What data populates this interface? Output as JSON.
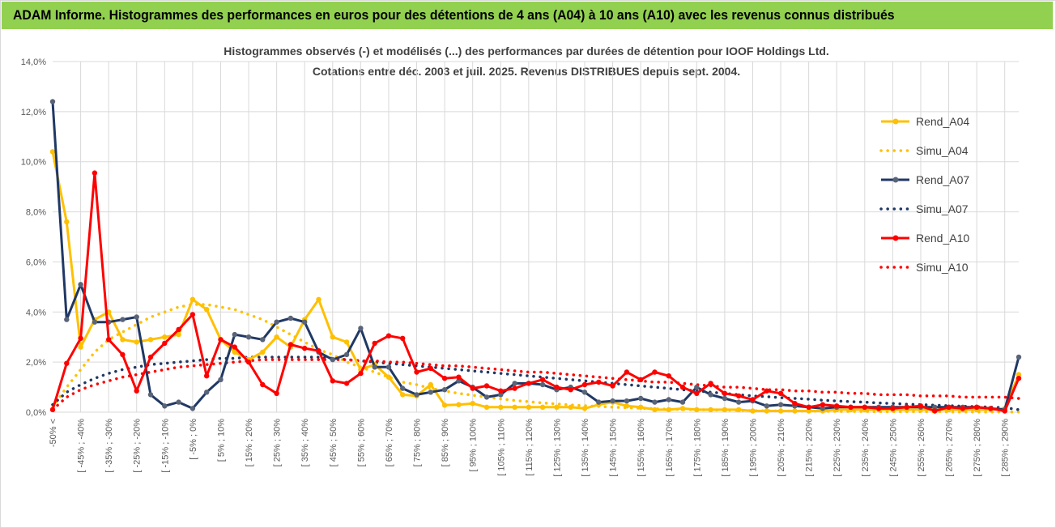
{
  "banner": {
    "title": "ADAM Informe. Histogrammes des performances en euros pour des détentions de 4 ans (A04) à 10 ans (A10) avec les revenus connus distribués"
  },
  "colors": {
    "banner_bg": "#92d050",
    "a04": "#ffc000",
    "a07": "#203864",
    "a10": "#ff0000",
    "grid": "#d9d9d9"
  },
  "chart_data": {
    "type": "line",
    "title_line1": "Histogrammes observés (-) et modélisés (...) des performances par durées de détention pour IOOF Holdings Ltd.",
    "title_line2": "Cotations entre déc. 2003 et juil. 2025. Revenus DISTRIBUES depuis sept. 2004.",
    "ylim": [
      0,
      14
    ],
    "yticks": [
      "0,0%",
      "2,0%",
      "4,0%",
      "6,0%",
      "8,0%",
      "10,0%",
      "12,0%",
      "14,0%"
    ],
    "x_labels_shown": [
      "-50% <",
      "[ -45% ; -40%",
      "[ -35% ; -30%",
      "[ -25% ; -20%",
      "[ -15% ; -10%",
      "[ -5% ; 0%",
      "[ 5% ; 10%",
      "[ 15% ; 20%",
      "[ 25% ; 30%",
      "[ 35% ; 40%",
      "[ 45% ; 50%",
      "[ 55% ; 60%",
      "[ 65% ; 70%",
      "[ 75% ; 80%",
      "[ 85% ; 90%",
      "[ 95% ; 100%",
      "[ 105% ; 110%",
      "[ 115% ; 120%",
      "[ 125% ; 130%",
      "[ 135% ; 140%",
      "[ 145% ; 150%",
      "[ 155% ; 160%",
      "[ 165% ; 170%",
      "[ 175% ; 180%",
      "[ 185% ; 190%",
      "[ 195% ; 200%",
      "[ 205% ; 210%",
      "[ 215% ; 220%",
      "[ 225% ; 230%",
      "[ 235% ; 240%",
      "[ 245% ; 250%",
      "[ 255% ; 260%",
      "[ 265% ; 270%",
      "[ 275% ; 280%",
      "[ 285% ; 290%"
    ],
    "n_categories": 70,
    "legend_position": "right",
    "series": [
      {
        "name": "Rend_A04",
        "style": "solid",
        "marker": true,
        "color": "#ffc000",
        "values": [
          10.4,
          7.6,
          2.6,
          3.7,
          4.0,
          2.9,
          2.8,
          2.9,
          3.0,
          3.1,
          4.5,
          4.1,
          2.9,
          2.4,
          2.1,
          2.4,
          3.0,
          2.6,
          3.7,
          4.5,
          3.0,
          2.8,
          1.7,
          1.9,
          1.4,
          0.7,
          0.65,
          1.1,
          0.28,
          0.3,
          0.35,
          0.2,
          0.2,
          0.2,
          0.2,
          0.2,
          0.2,
          0.2,
          0.15,
          0.3,
          0.4,
          0.25,
          0.2,
          0.1,
          0.1,
          0.15,
          0.1,
          0.1,
          0.1,
          0.1,
          0.05,
          0.05,
          0.05,
          0.05,
          0.05,
          0.05,
          0.1,
          0.1,
          0.1,
          0.1,
          0.1,
          0.1,
          0.1,
          0.1,
          0.1,
          0.1,
          0.1,
          0.1,
          0.15,
          1.5
        ]
      },
      {
        "name": "Simu_A04",
        "style": "dotted",
        "marker": false,
        "color": "#ffc000",
        "values": [
          0.2,
          1.0,
          1.7,
          2.4,
          2.9,
          3.2,
          3.5,
          3.8,
          4.0,
          4.2,
          4.3,
          4.3,
          4.2,
          4.1,
          3.9,
          3.7,
          3.4,
          3.1,
          2.8,
          2.5,
          2.3,
          2.0,
          1.8,
          1.6,
          1.4,
          1.2,
          1.1,
          0.95,
          0.85,
          0.75,
          0.68,
          0.6,
          0.53,
          0.47,
          0.42,
          0.37,
          0.33,
          0.29,
          0.26,
          0.23,
          0.2,
          0.18,
          0.16,
          0.14,
          0.12,
          0.11,
          0.1,
          0.09,
          0.08,
          0.07,
          0.06,
          0.06,
          0.05,
          0.05,
          0.04,
          0.04,
          0.03,
          0.03,
          0.03,
          0.02,
          0.02,
          0.02,
          0.02,
          0.02,
          0.01,
          0.01,
          0.01,
          0.01,
          0.01,
          0.01
        ]
      },
      {
        "name": "Rend_A07",
        "style": "solid",
        "marker": true,
        "color": "#203864",
        "values": [
          12.4,
          3.7,
          5.1,
          3.6,
          3.6,
          3.7,
          3.8,
          0.7,
          0.25,
          0.4,
          0.15,
          0.8,
          1.3,
          3.1,
          3.0,
          2.9,
          3.6,
          3.75,
          3.6,
          2.4,
          2.1,
          2.3,
          3.35,
          1.8,
          1.8,
          0.95,
          0.7,
          0.8,
          0.9,
          1.25,
          1.0,
          0.6,
          0.7,
          1.15,
          1.15,
          1.1,
          0.9,
          1.0,
          0.8,
          0.4,
          0.45,
          0.45,
          0.55,
          0.4,
          0.5,
          0.4,
          1.0,
          0.7,
          0.55,
          0.4,
          0.45,
          0.25,
          0.3,
          0.25,
          0.2,
          0.15,
          0.2,
          0.2,
          0.2,
          0.2,
          0.2,
          0.2,
          0.2,
          0.2,
          0.2,
          0.2,
          0.2,
          0.15,
          0.1,
          2.2
        ]
      },
      {
        "name": "Simu_A07",
        "style": "dotted",
        "marker": false,
        "color": "#203864",
        "values": [
          0.3,
          0.8,
          1.1,
          1.35,
          1.55,
          1.7,
          1.8,
          1.9,
          1.95,
          2.0,
          2.05,
          2.1,
          2.15,
          2.15,
          2.2,
          2.2,
          2.2,
          2.2,
          2.2,
          2.2,
          2.15,
          2.1,
          2.05,
          2.0,
          1.95,
          1.9,
          1.85,
          1.8,
          1.75,
          1.7,
          1.65,
          1.6,
          1.55,
          1.5,
          1.45,
          1.4,
          1.35,
          1.3,
          1.25,
          1.2,
          1.15,
          1.1,
          1.05,
          1.0,
          0.95,
          0.9,
          0.85,
          0.8,
          0.75,
          0.7,
          0.65,
          0.62,
          0.58,
          0.55,
          0.52,
          0.48,
          0.45,
          0.42,
          0.4,
          0.37,
          0.35,
          0.32,
          0.3,
          0.28,
          0.26,
          0.24,
          0.22,
          0.2,
          0.18,
          0.1
        ]
      },
      {
        "name": "Rend_A10",
        "style": "solid",
        "marker": true,
        "color": "#ff0000",
        "values": [
          0.1,
          1.95,
          2.95,
          9.55,
          2.9,
          2.3,
          0.85,
          2.2,
          2.75,
          3.3,
          3.9,
          1.45,
          2.9,
          2.6,
          2.0,
          1.1,
          0.75,
          2.7,
          2.55,
          2.45,
          1.25,
          1.15,
          1.55,
          2.75,
          3.05,
          2.95,
          1.6,
          1.75,
          1.35,
          1.4,
          0.95,
          1.05,
          0.85,
          0.95,
          1.15,
          1.3,
          1.0,
          0.9,
          1.1,
          1.2,
          1.05,
          1.6,
          1.3,
          1.6,
          1.45,
          1.0,
          0.75,
          1.15,
          0.75,
          0.65,
          0.5,
          0.85,
          0.75,
          0.35,
          0.2,
          0.3,
          0.25,
          0.2,
          0.2,
          0.15,
          0.15,
          0.2,
          0.25,
          0.05,
          0.2,
          0.15,
          0.2,
          0.15,
          0.05,
          1.35
        ]
      },
      {
        "name": "Simu_A10",
        "style": "dotted",
        "marker": false,
        "color": "#ff0000",
        "values": [
          0.1,
          0.6,
          0.9,
          1.1,
          1.25,
          1.4,
          1.5,
          1.6,
          1.7,
          1.8,
          1.85,
          1.9,
          1.95,
          2.0,
          2.05,
          2.1,
          2.1,
          2.1,
          2.1,
          2.1,
          2.1,
          2.1,
          2.05,
          2.05,
          2.0,
          2.0,
          1.95,
          1.9,
          1.85,
          1.85,
          1.8,
          1.75,
          1.7,
          1.65,
          1.6,
          1.6,
          1.55,
          1.5,
          1.45,
          1.4,
          1.35,
          1.3,
          1.25,
          1.2,
          1.2,
          1.15,
          1.1,
          1.05,
          1.0,
          1.0,
          0.95,
          0.9,
          0.9,
          0.85,
          0.85,
          0.8,
          0.8,
          0.75,
          0.75,
          0.7,
          0.7,
          0.7,
          0.65,
          0.65,
          0.65,
          0.6,
          0.6,
          0.6,
          0.6,
          0.55
        ]
      }
    ]
  }
}
